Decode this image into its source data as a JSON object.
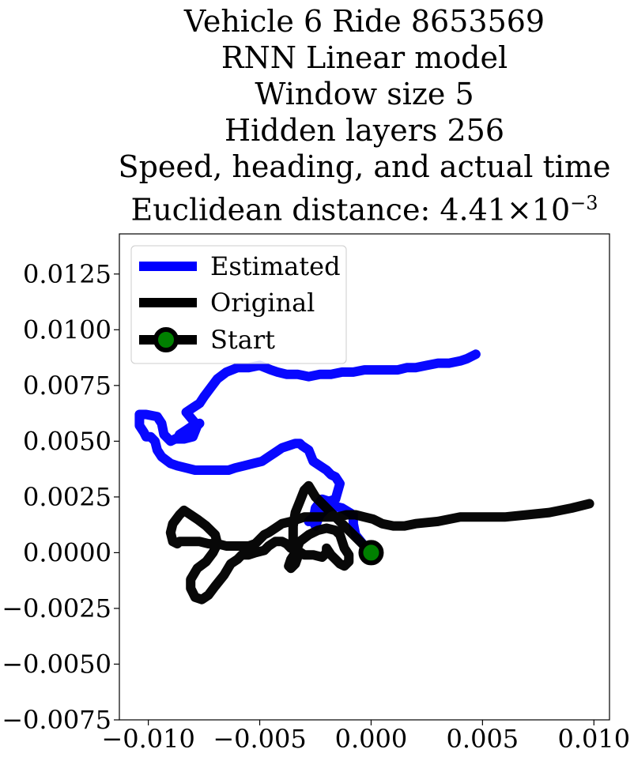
{
  "title": {
    "lines": [
      "Vehicle 6 Ride 8653569",
      "RNN Linear model",
      "Window size 5",
      "Hidden layers 256",
      "Speed, heading, and actual time"
    ],
    "metric_label": "Euclidean distance: 4.41",
    "metric_times": "×",
    "metric_base": "10",
    "metric_exponent": "−3"
  },
  "chart_data": {
    "type": "line",
    "title": "Vehicle 6 Ride 8653569 / RNN Linear model / Window size 5 / Hidden layers 256 / Speed, heading, and actual time / Euclidean distance: 4.41×10^−3",
    "xlabel": "",
    "ylabel": "",
    "xlim": [
      -0.0113,
      0.0107
    ],
    "ylim": [
      -0.0075,
      0.0143
    ],
    "x_ticks": [
      -0.01,
      -0.005,
      0.0,
      0.005,
      0.01
    ],
    "x_tick_labels": [
      "−0.010",
      "−0.005",
      "0.000",
      "0.005",
      "0.010"
    ],
    "y_ticks": [
      -0.0075,
      -0.005,
      -0.0025,
      0.0,
      0.0025,
      0.005,
      0.0075,
      0.01,
      0.0125
    ],
    "y_tick_labels": [
      "−0.0075",
      "−0.0050",
      "−0.0025",
      "0.0000",
      "0.0025",
      "0.0050",
      "0.0075",
      "0.0100",
      "0.0125"
    ],
    "grid": false,
    "legend_position": "top-left",
    "series": [
      {
        "name": "Estimated",
        "color": "#0000ff",
        "x": [
          0.0,
          -0.0003,
          -0.0007,
          -0.0008,
          -0.0008,
          -0.0013,
          -0.0017,
          -0.002,
          -0.0023,
          -0.0025,
          -0.0026,
          -0.0027,
          -0.0028,
          -0.0026,
          -0.0025,
          -0.0022,
          -0.0019,
          -0.0016,
          -0.0014,
          -0.0016,
          -0.0018,
          -0.002,
          -0.0023,
          -0.0026,
          -0.0028,
          -0.0031,
          -0.0032,
          -0.0034,
          -0.0037,
          -0.004,
          -0.0043,
          -0.0046,
          -0.0049,
          -0.0053,
          -0.0057,
          -0.0061,
          -0.0064,
          -0.0066,
          -0.0069,
          -0.0072,
          -0.0075,
          -0.0079,
          -0.0083,
          -0.0087,
          -0.009,
          -0.0094,
          -0.0096,
          -0.0097,
          -0.0099,
          -0.0101,
          -0.0102,
          -0.0104,
          -0.0104,
          -0.0101,
          -0.0096,
          -0.0094,
          -0.0093,
          -0.009,
          -0.0086,
          -0.0082,
          -0.0079,
          -0.0077,
          -0.008,
          -0.0083,
          -0.0086,
          -0.0087,
          -0.0084,
          -0.008,
          -0.0078,
          -0.0083,
          -0.008,
          -0.0077,
          -0.0075,
          -0.0072,
          -0.0069,
          -0.0065,
          -0.006,
          -0.0055,
          -0.005,
          -0.0045,
          -0.0042,
          -0.0038,
          -0.0033,
          -0.0028,
          -0.0023,
          -0.0018,
          -0.0013,
          -0.0008,
          -0.0003,
          0.0003,
          0.0008,
          0.0012,
          0.0016,
          0.002,
          0.0025,
          0.003,
          0.0035,
          0.004,
          0.0043,
          0.0047
        ],
        "y": [
          0.0,
          0.0003,
          0.0008,
          0.0013,
          0.0017,
          0.002,
          0.0021,
          0.002,
          0.0017,
          0.0012,
          0.0014,
          0.0015,
          0.0014,
          0.0014,
          0.002,
          0.0024,
          0.0023,
          0.0024,
          0.0031,
          0.0034,
          0.0035,
          0.0037,
          0.0039,
          0.0041,
          0.0046,
          0.0048,
          0.0049,
          0.0049,
          0.0048,
          0.0047,
          0.0045,
          0.0043,
          0.0041,
          0.004,
          0.0039,
          0.0038,
          0.0037,
          0.0037,
          0.0037,
          0.0037,
          0.0037,
          0.0037,
          0.0038,
          0.0039,
          0.004,
          0.0043,
          0.0046,
          0.005,
          0.0052,
          0.0052,
          0.0054,
          0.0057,
          0.0062,
          0.0062,
          0.0061,
          0.0058,
          0.0053,
          0.005,
          0.0052,
          0.0054,
          0.0056,
          0.0058,
          0.0057,
          0.0055,
          0.0053,
          0.0051,
          0.0051,
          0.0052,
          0.0057,
          0.0063,
          0.0065,
          0.0067,
          0.007,
          0.0074,
          0.0078,
          0.0081,
          0.0083,
          0.0083,
          0.0084,
          0.0082,
          0.0081,
          0.008,
          0.008,
          0.0079,
          0.008,
          0.008,
          0.0081,
          0.0081,
          0.0082,
          0.0082,
          0.0082,
          0.0082,
          0.0083,
          0.0083,
          0.0084,
          0.0085,
          0.0085,
          0.0086,
          0.0087,
          0.0089
        ]
      },
      {
        "name": "Original",
        "color": "#000000",
        "x": [
          0.0,
          -0.0005,
          -0.001,
          -0.0015,
          -0.002,
          -0.0025,
          -0.0028,
          -0.003,
          -0.0032,
          -0.0034,
          -0.0035,
          -0.0035,
          -0.0034,
          -0.0033,
          -0.0034,
          -0.0036,
          -0.0037,
          -0.0036,
          -0.0034,
          -0.0032,
          -0.0028,
          -0.0024,
          -0.002,
          -0.0016,
          -0.0014,
          -0.0013,
          -0.0012,
          -0.001,
          -0.001,
          -0.0012,
          -0.0014,
          -0.0016,
          -0.0018,
          -0.002,
          -0.002,
          -0.0022,
          -0.0026,
          -0.003,
          -0.0033,
          -0.0036,
          -0.0038,
          -0.004,
          -0.0043,
          -0.0046,
          -0.0048,
          -0.0052,
          -0.0055,
          -0.0058,
          -0.006,
          -0.0063,
          -0.0066,
          -0.007,
          -0.0073,
          -0.0076,
          -0.0079,
          -0.0081,
          -0.0081,
          -0.0078,
          -0.0074,
          -0.0071,
          -0.0069,
          -0.007,
          -0.0074,
          -0.0078,
          -0.0081,
          -0.0084,
          -0.0086,
          -0.0089,
          -0.009,
          -0.0089,
          -0.0087,
          -0.0086,
          -0.0082,
          -0.0077,
          -0.0073,
          -0.0069,
          -0.0065,
          -0.006,
          -0.0055,
          -0.0052,
          -0.005,
          -0.0048,
          -0.0046,
          -0.0043,
          -0.004,
          -0.0036,
          -0.0033,
          -0.003,
          -0.0027,
          -0.0023,
          -0.0019,
          -0.0015,
          -0.0011,
          -0.0007,
          -0.0003,
          0.0001,
          0.0005,
          0.001,
          0.0015,
          0.002,
          0.003,
          0.004,
          0.005,
          0.006,
          0.007,
          0.008,
          0.009,
          0.0098
        ],
        "y": [
          0.0,
          0.0005,
          0.001,
          0.0015,
          0.002,
          0.0025,
          0.003,
          0.0028,
          0.0023,
          0.0018,
          0.0012,
          0.0006,
          0.0002,
          -0.0002,
          -0.0005,
          -0.0007,
          -0.0006,
          -0.0003,
          0.0,
          0.0005,
          0.0008,
          0.001,
          0.0011,
          0.001,
          0.0008,
          0.0005,
          0.0002,
          -0.0001,
          -0.0004,
          -0.0006,
          -0.0005,
          -0.0003,
          -0.0001,
          0.0002,
          0.0,
          -0.0002,
          -0.0001,
          -0.0001,
          0.0001,
          0.0002,
          0.0004,
          0.0005,
          0.0005,
          0.0003,
          0.0001,
          0.0,
          -0.0001,
          -0.0001,
          -0.0003,
          -0.0005,
          -0.001,
          -0.0015,
          -0.0019,
          -0.0021,
          -0.002,
          -0.0016,
          -0.0012,
          -0.0007,
          -0.0004,
          0.0,
          0.0004,
          0.0008,
          0.0012,
          0.0015,
          0.0017,
          0.0019,
          0.0017,
          0.0013,
          0.0009,
          0.0005,
          0.0004,
          0.0005,
          0.0005,
          0.0005,
          0.0004,
          0.0004,
          0.0003,
          0.0003,
          0.0003,
          0.0004,
          0.0006,
          0.0008,
          0.0009,
          0.0011,
          0.0013,
          0.0014,
          0.0015,
          0.0016,
          0.0016,
          0.0016,
          0.0016,
          0.0016,
          0.0017,
          0.0017,
          0.0016,
          0.0015,
          0.0013,
          0.0012,
          0.0012,
          0.0013,
          0.0014,
          0.0016,
          0.0016,
          0.0016,
          0.0017,
          0.0018,
          0.002,
          0.0022
        ]
      }
    ],
    "markers": [
      {
        "name": "Start",
        "x": 0.0,
        "y": 0.0,
        "edge_color": "#000000",
        "face_color": "#008000"
      }
    ]
  }
}
